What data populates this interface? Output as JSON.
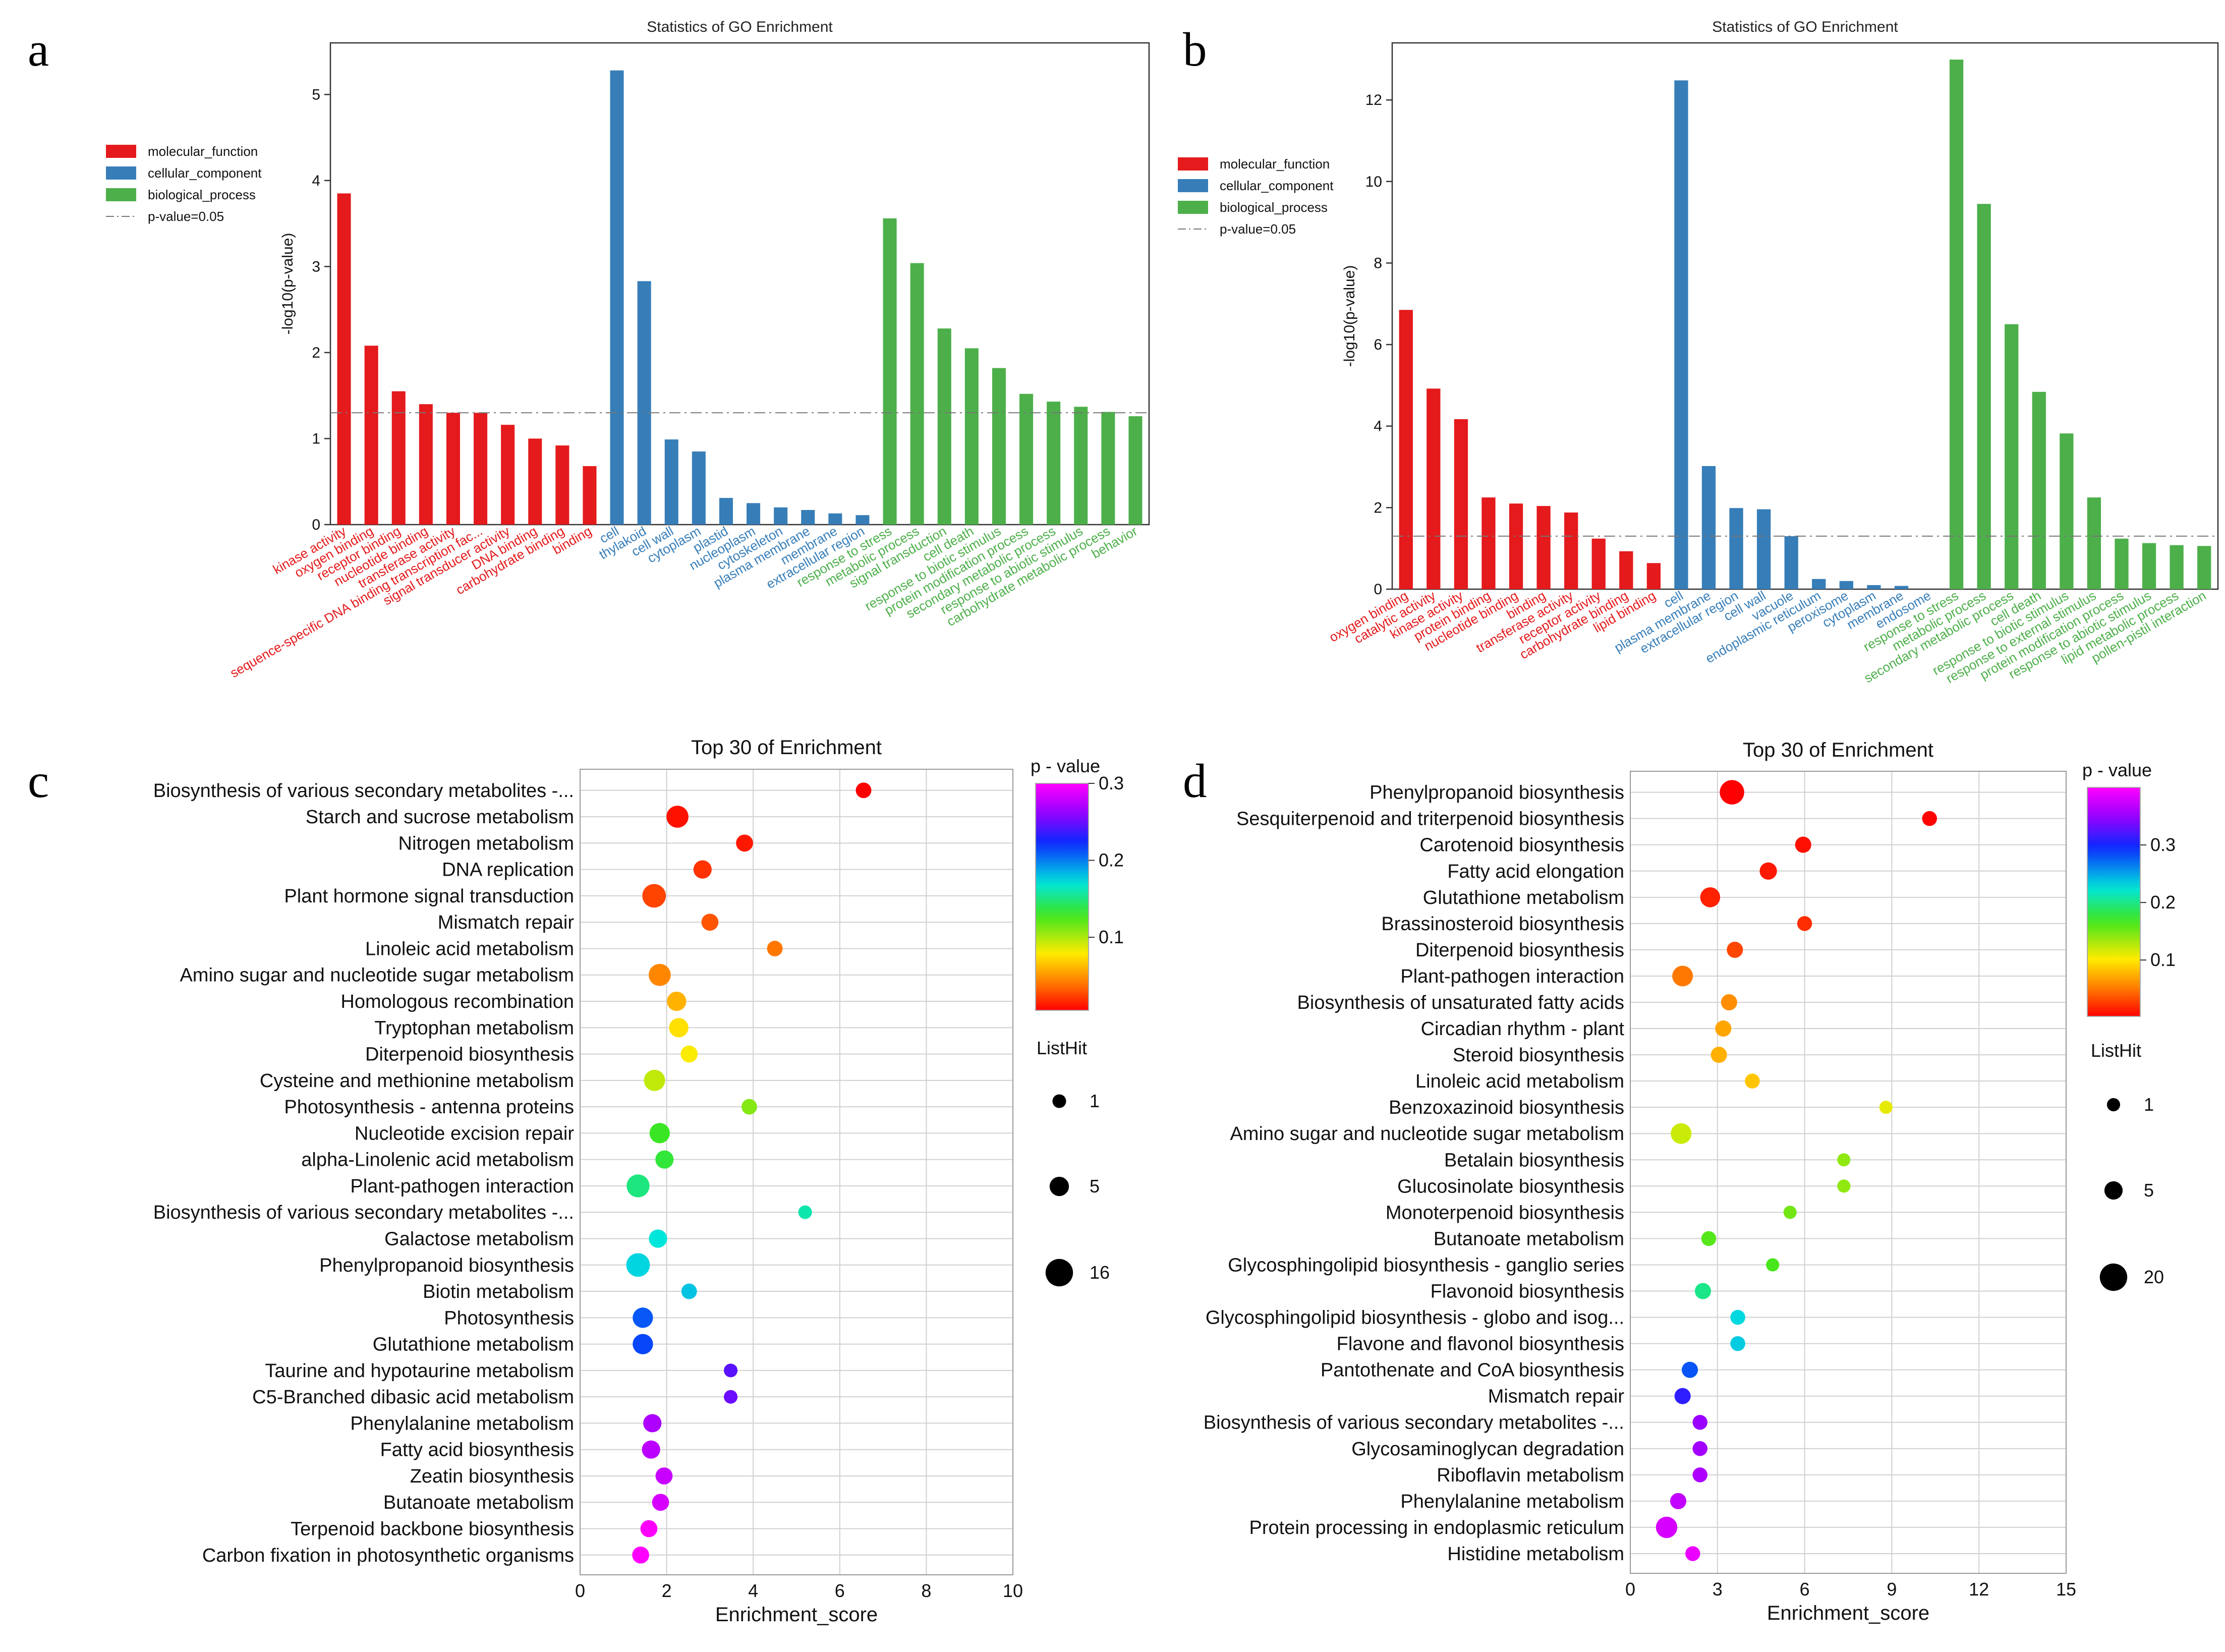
{
  "chart_data": [
    {
      "panel": "a",
      "type": "bar",
      "title": "Statistics of GO Enrichment",
      "xlabel": "",
      "ylabel": "-log10(p-value)",
      "ylim": [
        0,
        5.6
      ],
      "yticks": [
        "0",
        "1",
        "2",
        "3",
        "4",
        "5"
      ],
      "legend_position": "upper-left",
      "threshold": {
        "label": "p-value=0.05",
        "value": 1.3
      },
      "groups": [
        {
          "name": "molecular_function",
          "color": "#e41a1c"
        },
        {
          "name": "cellular_component",
          "color": "#377eb8"
        },
        {
          "name": "biological_process",
          "color": "#4daf4a"
        }
      ],
      "categories": [
        "kinase activity",
        "oxygen binding",
        "receptor binding",
        "nucleotide binding",
        "transferase activity",
        "sequence-specific DNA binding transcription fac...",
        "signal transducer activity",
        "DNA binding",
        "carbohydrate binding",
        "binding",
        "cell",
        "thylakoid",
        "cell wall",
        "cytoplasm",
        "plastid",
        "nucleoplasm",
        "cytoskeleton",
        "plasma membrane",
        "membrane",
        "extracellular region",
        "response to stress",
        "metabolic process",
        "signal transduction",
        "cell death",
        "response to biotic stimulus",
        "protein modification process",
        "secondary metabolic process",
        "response to abiotic stimulus",
        "carbohydrate metabolic process",
        "behavior"
      ],
      "category_group": [
        0,
        0,
        0,
        0,
        0,
        0,
        0,
        0,
        0,
        0,
        1,
        1,
        1,
        1,
        1,
        1,
        1,
        1,
        1,
        1,
        2,
        2,
        2,
        2,
        2,
        2,
        2,
        2,
        2,
        2
      ],
      "values": [
        3.85,
        2.08,
        1.55,
        1.4,
        1.3,
        1.3,
        1.16,
        1.0,
        0.92,
        0.68,
        5.28,
        2.83,
        0.99,
        0.85,
        0.31,
        0.25,
        0.2,
        0.17,
        0.13,
        0.11,
        3.56,
        3.04,
        2.28,
        2.05,
        1.82,
        1.52,
        1.43,
        1.37,
        1.31,
        1.26
      ]
    },
    {
      "panel": "b",
      "type": "bar",
      "title": "Statistics of GO Enrichment",
      "xlabel": "",
      "ylabel": "-log10(p-value)",
      "ylim": [
        0,
        13.4
      ],
      "yticks": [
        "0",
        "2",
        "4",
        "6",
        "8",
        "10",
        "12"
      ],
      "legend_position": "upper-left",
      "threshold": {
        "label": "p-value=0.05",
        "value": 1.3
      },
      "groups": [
        {
          "name": "molecular_function",
          "color": "#e41a1c"
        },
        {
          "name": "cellular_component",
          "color": "#377eb8"
        },
        {
          "name": "biological_process",
          "color": "#4daf4a"
        }
      ],
      "categories": [
        "oxygen binding",
        "catalytic activity",
        "kinase activity",
        "protein binding",
        "nucleotide binding",
        "binding",
        "transferase activity",
        "receptor activity",
        "carbohydrate binding",
        "lipid binding",
        "cell",
        "plasma membrane",
        "extracellular region",
        "cell wall",
        "vacuole",
        "endoplasmic reticulum",
        "peroxisome",
        "cytoplasm",
        "membrane",
        "endosome",
        "response to stress",
        "metabolic process",
        "secondary metabolic process",
        "cell death",
        "response to biotic stimulus",
        "response to external stimulus",
        "protein modification process",
        "response to abiotic stimulus",
        "lipid metabolic process",
        "pollen-pistil interaction"
      ],
      "category_group": [
        0,
        0,
        0,
        0,
        0,
        0,
        0,
        0,
        0,
        0,
        1,
        1,
        1,
        1,
        1,
        1,
        1,
        1,
        1,
        1,
        2,
        2,
        2,
        2,
        2,
        2,
        2,
        2,
        2,
        2
      ],
      "values": [
        6.85,
        4.92,
        4.17,
        2.25,
        2.1,
        2.04,
        1.88,
        1.24,
        0.93,
        0.64,
        12.48,
        3.02,
        1.99,
        1.96,
        1.3,
        0.25,
        0.2,
        0.1,
        0.08,
        0.0,
        12.99,
        9.45,
        6.5,
        4.84,
        3.82,
        2.25,
        1.24,
        1.13,
        1.08,
        1.06
      ]
    },
    {
      "panel": "c",
      "type": "scatter",
      "title": "Top 30 of  Enrichment",
      "xlabel": "Enrichment_score",
      "ylabel": "",
      "xlim": [
        0,
        10
      ],
      "xticks": [
        "0",
        "2",
        "4",
        "6",
        "8",
        "10"
      ],
      "color_legend": {
        "title": "p - value",
        "min": 0.005,
        "max": 0.3,
        "tick_values": [
          0.1,
          0.2,
          0.3
        ],
        "tick_labels": [
          "0.1",
          "0.2",
          "0.3"
        ]
      },
      "size_legend": {
        "title": "ListHit",
        "values": [
          1,
          5,
          16
        ],
        "labels": [
          "1",
          "5",
          "16"
        ]
      },
      "terms": [
        "Biosynthesis of various secondary metabolites -...",
        "Starch and sucrose metabolism",
        "Nitrogen metabolism",
        "DNA replication",
        "Plant hormone signal transduction",
        "Mismatch repair",
        "Linoleic acid metabolism",
        "Amino sugar and nucleotide sugar metabolism",
        "Homologous recombination",
        "Tryptophan metabolism",
        "Diterpenoid biosynthesis",
        "Cysteine and methionine metabolism",
        "Photosynthesis - antenna proteins",
        "Nucleotide excision repair",
        "alpha-Linolenic acid metabolism",
        "Plant-pathogen interaction",
        "Biosynthesis of various secondary metabolites -...",
        "Galactose metabolism",
        "Phenylpropanoid biosynthesis",
        "Biotin metabolism",
        "Photosynthesis",
        "Glutathione metabolism",
        "Taurine and hypotaurine metabolism",
        "C5-Branched dibasic acid metabolism",
        "Phenylalanine metabolism",
        "Fatty acid biosynthesis",
        "Zeatin biosynthesis",
        "Butanoate metabolism",
        "Terpenoid backbone biosynthesis",
        "Carbon fixation in photosynthetic organisms"
      ],
      "x": [
        6.55,
        2.25,
        3.8,
        2.83,
        1.71,
        3.0,
        4.5,
        1.84,
        2.23,
        2.28,
        2.52,
        1.72,
        3.91,
        1.84,
        1.95,
        1.34,
        5.2,
        1.8,
        1.34,
        2.52,
        1.45,
        1.45,
        3.48,
        3.48,
        1.67,
        1.64,
        1.94,
        1.86,
        1.59,
        1.4
      ],
      "pvalue": [
        0.005,
        0.01,
        0.012,
        0.02,
        0.025,
        0.03,
        0.04,
        0.045,
        0.06,
        0.075,
        0.08,
        0.095,
        0.11,
        0.13,
        0.135,
        0.15,
        0.16,
        0.17,
        0.175,
        0.18,
        0.21,
        0.215,
        0.245,
        0.25,
        0.27,
        0.275,
        0.28,
        0.285,
        0.3,
        0.31
      ],
      "listhit": [
        2,
        8,
        3,
        4,
        10,
        3,
        2,
        8,
        5,
        5,
        3,
        7,
        2,
        6,
        4,
        9,
        1,
        4,
        10,
        2,
        6,
        6,
        1,
        1,
        4,
        4,
        3,
        3,
        3,
        3
      ]
    },
    {
      "panel": "d",
      "type": "scatter",
      "title": "Top 30 of  Enrichment",
      "xlabel": "Enrichment_score",
      "ylabel": "",
      "xlim": [
        0,
        15
      ],
      "xticks": [
        "0",
        "3",
        "6",
        "9",
        "12",
        "15"
      ],
      "color_legend": {
        "title": "p - value",
        "min": 0.002,
        "max": 0.4,
        "tick_values": [
          0.1,
          0.2,
          0.3
        ],
        "tick_labels": [
          "0.1",
          "0.2",
          "0.3"
        ]
      },
      "size_legend": {
        "title": "ListHit",
        "values": [
          1,
          5,
          20
        ],
        "labels": [
          "1",
          "5",
          "20"
        ]
      },
      "terms": [
        "Phenylpropanoid biosynthesis",
        "Sesquiterpenoid and triterpenoid biosynthesis",
        "Carotenoid biosynthesis",
        "Fatty acid elongation",
        "Glutathione metabolism",
        "Brassinosteroid biosynthesis",
        "Diterpenoid biosynthesis",
        "Plant-pathogen interaction",
        "Biosynthesis of unsaturated fatty acids",
        "Circadian rhythm - plant",
        "Steroid biosynthesis",
        "Linoleic acid metabolism",
        "Benzoxazinoid biosynthesis",
        "Amino sugar and nucleotide sugar metabolism",
        "Betalain biosynthesis",
        "Glucosinolate biosynthesis",
        "Monoterpenoid biosynthesis",
        "Butanoate metabolism",
        "Glycosphingolipid biosynthesis - ganglio series",
        "Flavonoid biosynthesis",
        "Glycosphingolipid biosynthesis - globo and isog...",
        "Flavone and flavonol biosynthesis",
        "Pantothenate and CoA biosynthesis",
        "Mismatch repair",
        "Biosynthesis of various secondary metabolites -...",
        "Glycosaminoglycan degradation",
        "Riboflavin metabolism",
        "Phenylalanine metabolism",
        "Protein processing in endoplasmic reticulum",
        "Histidine metabolism"
      ],
      "x": [
        3.5,
        10.3,
        5.95,
        4.75,
        2.75,
        6.0,
        3.6,
        1.8,
        3.4,
        3.2,
        3.05,
        4.2,
        8.8,
        1.75,
        7.35,
        7.35,
        5.5,
        2.7,
        4.9,
        2.5,
        3.7,
        3.7,
        2.05,
        1.8,
        2.4,
        2.4,
        2.4,
        1.65,
        1.25,
        2.15
      ],
      "pvalue": [
        0.002,
        0.003,
        0.008,
        0.012,
        0.015,
        0.02,
        0.03,
        0.05,
        0.06,
        0.07,
        0.075,
        0.085,
        0.11,
        0.12,
        0.14,
        0.14,
        0.15,
        0.16,
        0.165,
        0.2,
        0.23,
        0.235,
        0.28,
        0.31,
        0.35,
        0.355,
        0.36,
        0.37,
        0.38,
        0.39
      ],
      "listhit": [
        14,
        2,
        3,
        4,
        7,
        2,
        3,
        8,
        3,
        3,
        3,
        2,
        1,
        8,
        1,
        1,
        1,
        2,
        1,
        3,
        2,
        2,
        3,
        3,
        2,
        2,
        2,
        3,
        9,
        2
      ]
    }
  ]
}
